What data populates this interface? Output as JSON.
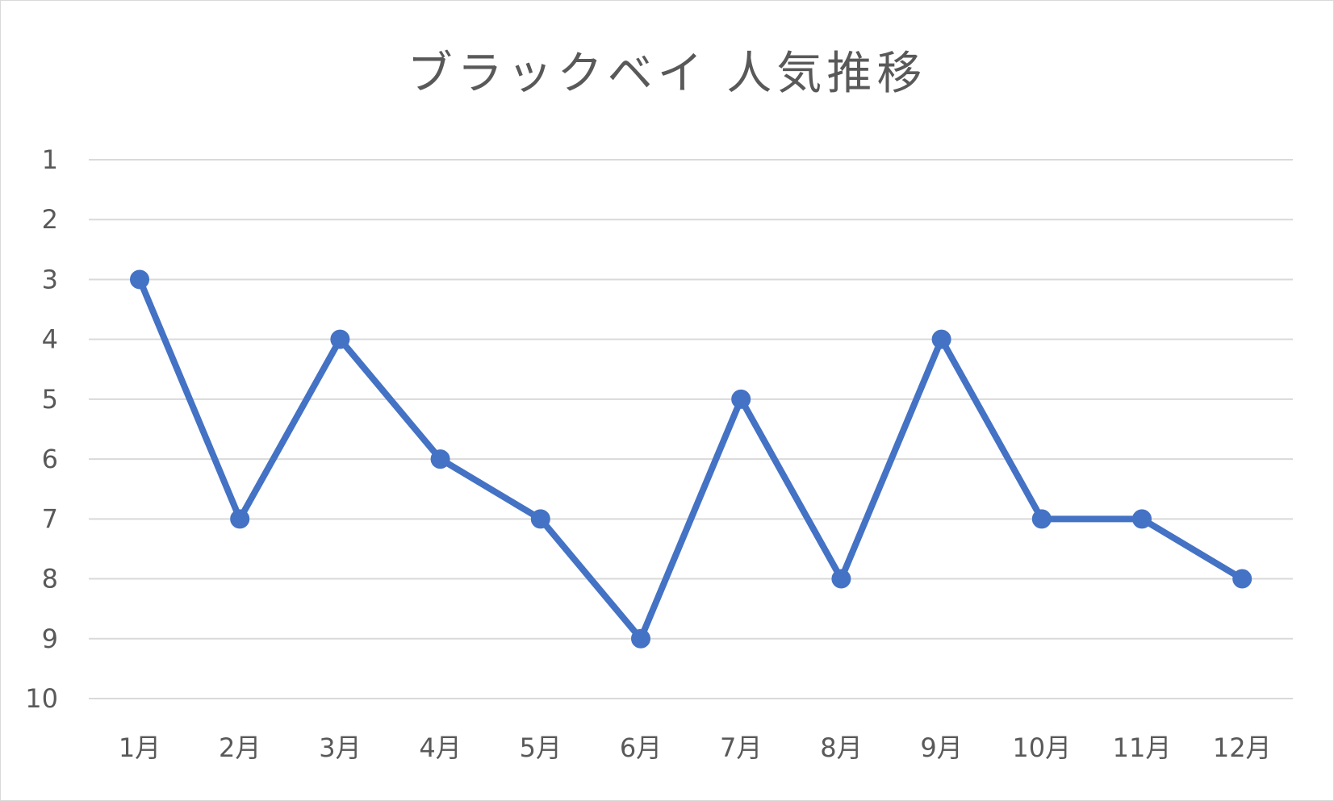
{
  "chart_data": {
    "type": "line",
    "title": "ブラックベイ 人気推移",
    "xlabel": "",
    "ylabel": "",
    "categories": [
      "1月",
      "2月",
      "3月",
      "4月",
      "5月",
      "6月",
      "7月",
      "8月",
      "9月",
      "10月",
      "11月",
      "12月"
    ],
    "series": [
      {
        "values": [
          3,
          7,
          4,
          6,
          7,
          9,
          5,
          8,
          4,
          7,
          7,
          8
        ],
        "color": "#4472C4",
        "marker": "circle"
      }
    ],
    "ylim": [
      1,
      10
    ],
    "y_ticks": [
      "1",
      "2",
      "3",
      "4",
      "5",
      "6",
      "7",
      "8",
      "9",
      "10"
    ],
    "y_reversed": true,
    "grid": true,
    "gridline_color": "#d9d9d9",
    "legend": "none"
  }
}
